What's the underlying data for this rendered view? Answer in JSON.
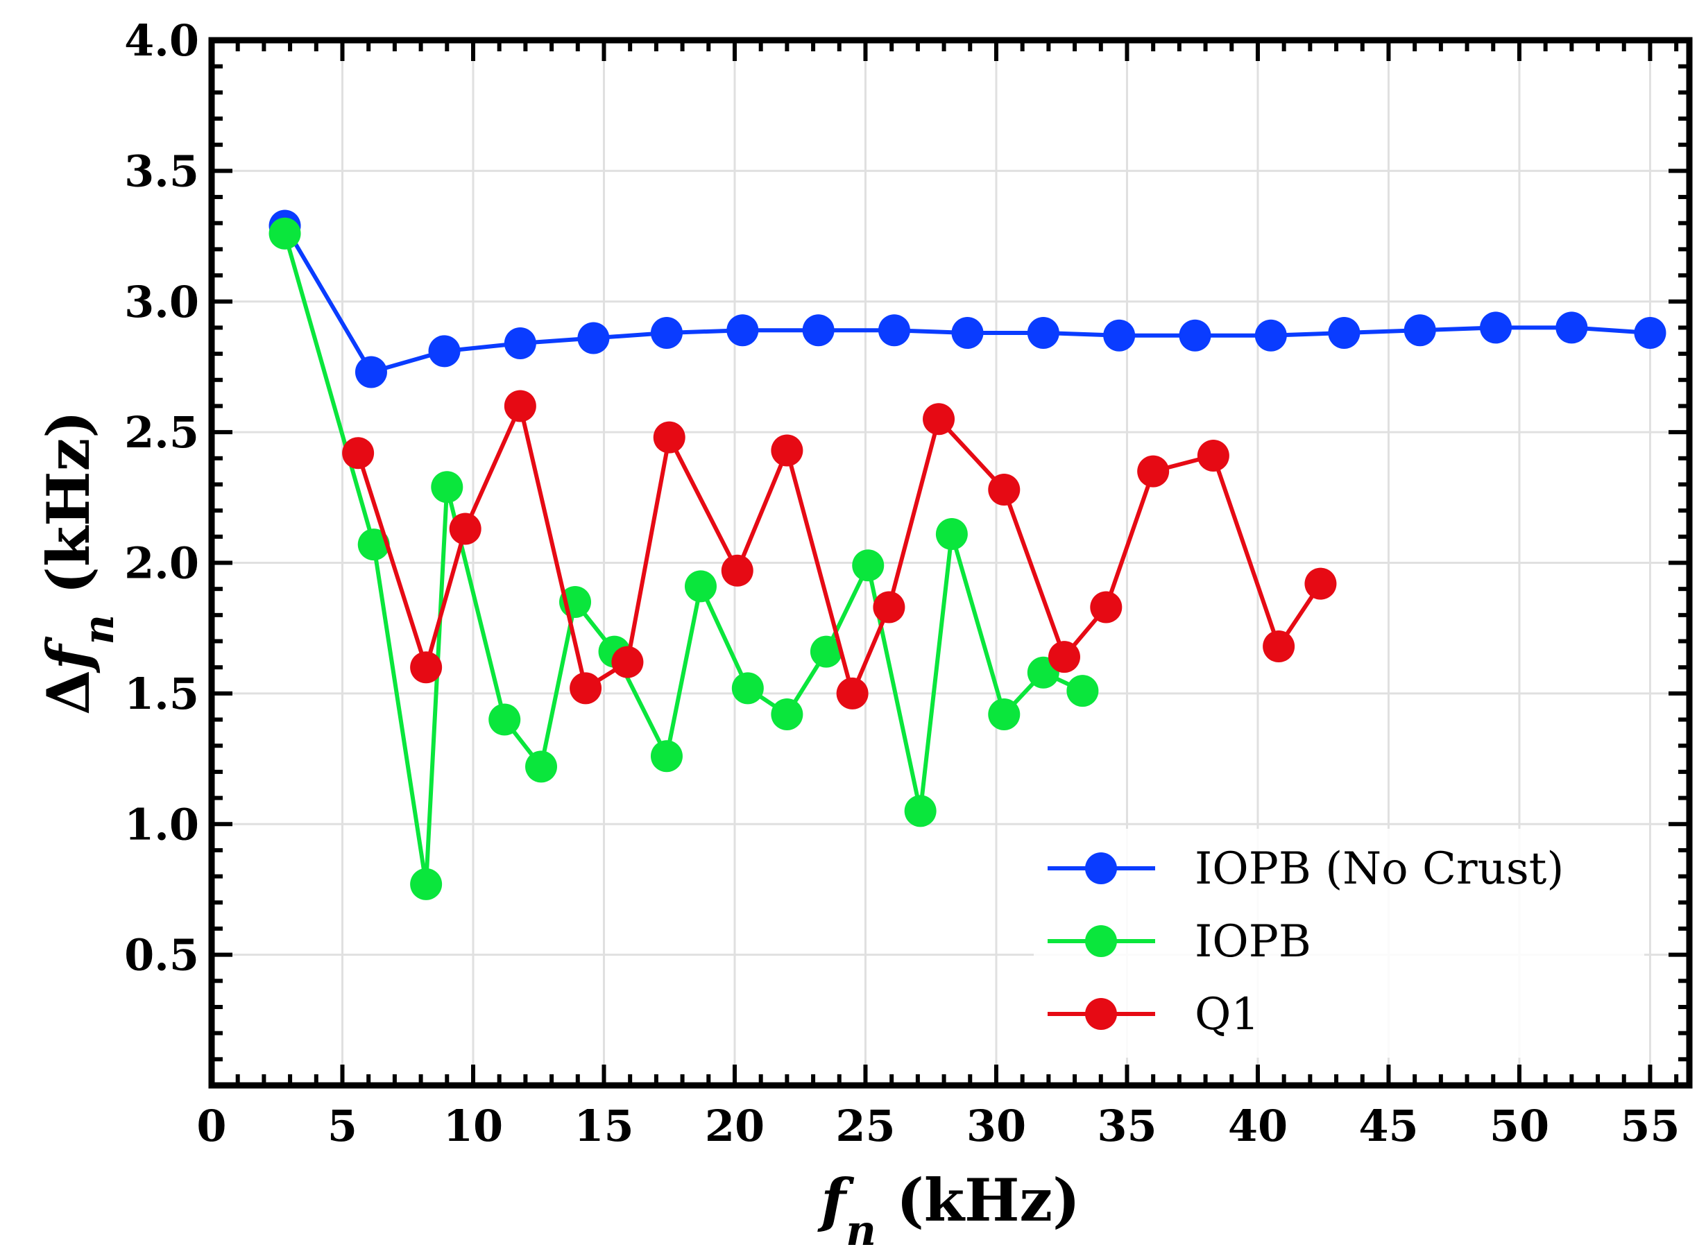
{
  "chart_data": {
    "type": "line",
    "title": "",
    "xlabel": {
      "main": "f",
      "sub": "n",
      "unit": " (kHz)"
    },
    "ylabel": {
      "prefix": "Δ",
      "main": "f",
      "sub": "n",
      "unit": " (kHz)"
    },
    "xlim": [
      0,
      56.5
    ],
    "ylim": [
      0,
      4.0
    ],
    "xticks": [
      0,
      5,
      10,
      15,
      20,
      25,
      30,
      35,
      40,
      45,
      50,
      55
    ],
    "xtick_labels": [
      "0",
      "5",
      "10",
      "15",
      "20",
      "25",
      "30",
      "35",
      "40",
      "45",
      "50",
      "55"
    ],
    "yticks": [
      0.5,
      1.0,
      1.5,
      2.0,
      2.5,
      3.0,
      3.5,
      4.0
    ],
    "ytick_labels": [
      "0.5",
      "1.0",
      "1.5",
      "2.0",
      "2.5",
      "3.0",
      "3.5",
      "4.0"
    ],
    "grid": true,
    "legend_position": "bottom-right",
    "series": [
      {
        "name": "IOPB (No Crust)",
        "color": "#0a3cff",
        "points": [
          [
            2.8,
            3.29
          ],
          [
            6.1,
            2.73
          ],
          [
            8.9,
            2.81
          ],
          [
            11.8,
            2.84
          ],
          [
            14.6,
            2.86
          ],
          [
            17.4,
            2.88
          ],
          [
            20.3,
            2.89
          ],
          [
            23.2,
            2.89
          ],
          [
            26.1,
            2.89
          ],
          [
            28.9,
            2.88
          ],
          [
            31.8,
            2.88
          ],
          [
            34.7,
            2.87
          ],
          [
            37.6,
            2.87
          ],
          [
            40.5,
            2.87
          ],
          [
            43.3,
            2.88
          ],
          [
            46.2,
            2.89
          ],
          [
            49.1,
            2.9
          ],
          [
            52.0,
            2.9
          ],
          [
            55.0,
            2.88
          ]
        ]
      },
      {
        "name": "IOPB",
        "color": "#0ae63c",
        "points": [
          [
            2.8,
            3.26
          ],
          [
            6.2,
            2.07
          ],
          [
            8.2,
            0.77
          ],
          [
            9.0,
            2.29
          ],
          [
            11.2,
            1.4
          ],
          [
            12.6,
            1.22
          ],
          [
            13.9,
            1.85
          ],
          [
            15.4,
            1.66
          ],
          [
            17.4,
            1.26
          ],
          [
            18.7,
            1.91
          ],
          [
            20.5,
            1.52
          ],
          [
            22.0,
            1.42
          ],
          [
            23.5,
            1.66
          ],
          [
            25.1,
            1.99
          ],
          [
            27.1,
            1.05
          ],
          [
            28.3,
            2.11
          ],
          [
            30.3,
            1.42
          ],
          [
            31.8,
            1.58
          ],
          [
            33.3,
            1.51
          ]
        ]
      },
      {
        "name": "Q1",
        "color": "#e60a14",
        "points": [
          [
            5.6,
            2.42
          ],
          [
            8.2,
            1.6
          ],
          [
            9.7,
            2.13
          ],
          [
            11.8,
            2.6
          ],
          [
            14.3,
            1.52
          ],
          [
            15.9,
            1.62
          ],
          [
            17.5,
            2.48
          ],
          [
            20.1,
            1.97
          ],
          [
            22.0,
            2.43
          ],
          [
            24.5,
            1.5
          ],
          [
            25.9,
            1.83
          ],
          [
            27.8,
            2.55
          ],
          [
            30.3,
            2.28
          ],
          [
            32.6,
            1.64
          ],
          [
            34.2,
            1.83
          ],
          [
            36.0,
            2.35
          ],
          [
            38.3,
            2.41
          ],
          [
            40.8,
            1.68
          ],
          [
            42.4,
            1.92
          ]
        ]
      }
    ]
  }
}
